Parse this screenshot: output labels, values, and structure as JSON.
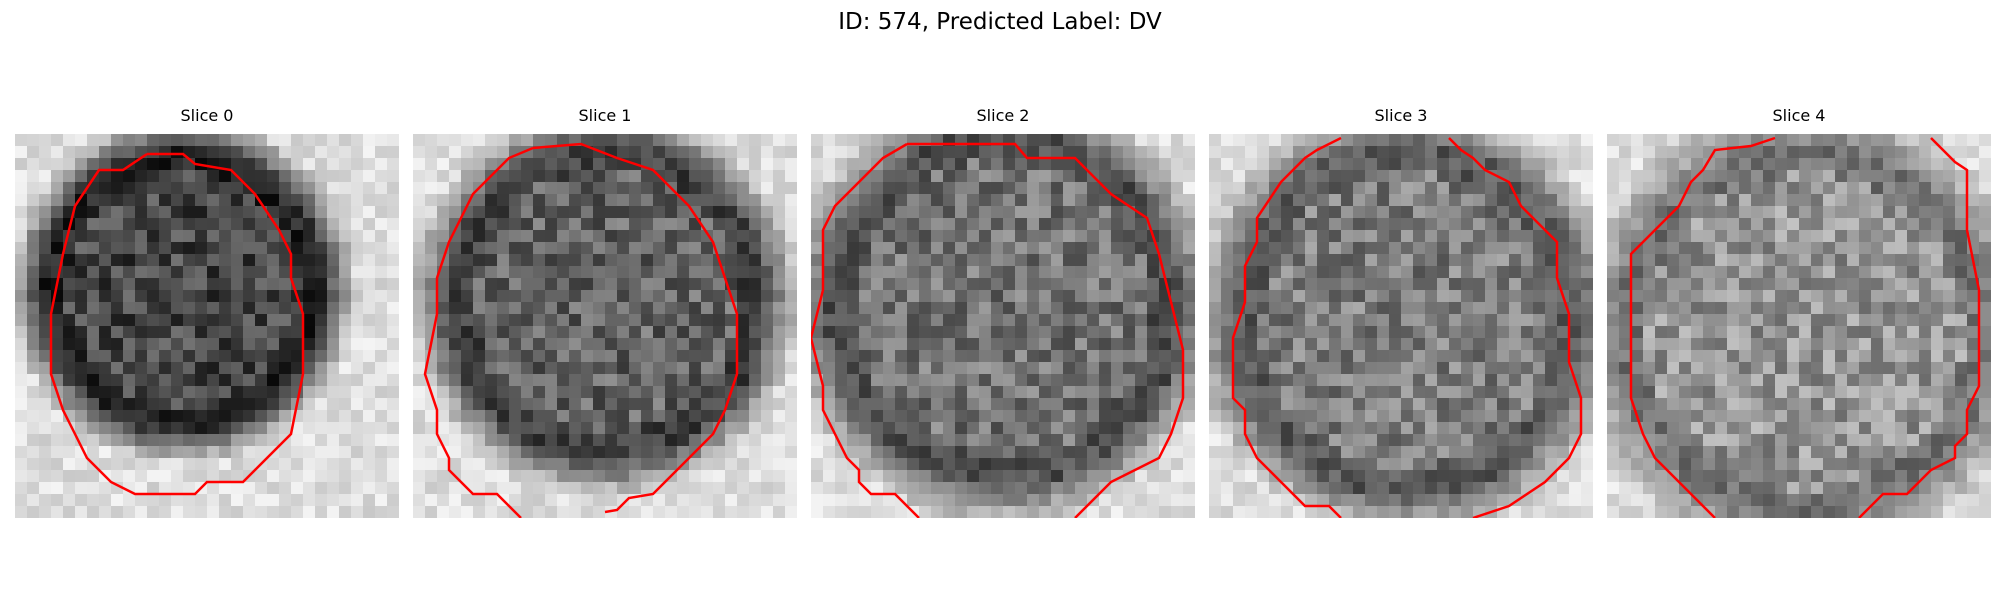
{
  "figure": {
    "title": "ID: 574, Predicted Label: DV",
    "contour_color": "#ff0000"
  },
  "slices": [
    {
      "title": "Slice 0"
    },
    {
      "title": "Slice 1"
    },
    {
      "title": "Slice 2"
    },
    {
      "title": "Slice 3"
    },
    {
      "title": "Slice 4"
    }
  ]
}
